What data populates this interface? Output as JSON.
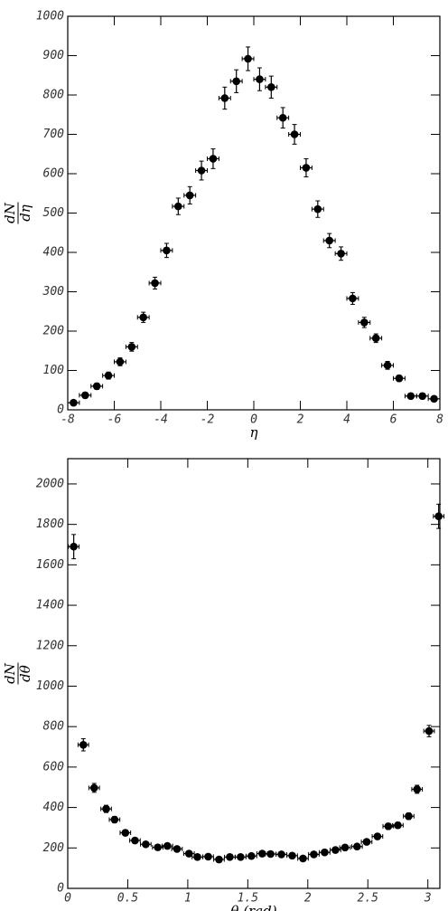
{
  "chart_data": [
    {
      "type": "scatter",
      "xlabel": "η",
      "ylabel_numerator": "dN",
      "ylabel_denominator": "dη",
      "x": [
        -7.75,
        -7.25,
        -6.75,
        -6.25,
        -5.75,
        -5.25,
        -4.75,
        -4.25,
        -3.75,
        -3.25,
        -2.75,
        -2.25,
        -1.75,
        -1.25,
        -0.75,
        -0.25,
        0.25,
        0.75,
        1.25,
        1.75,
        2.25,
        2.75,
        3.25,
        3.75,
        4.25,
        4.75,
        5.25,
        5.75,
        6.25,
        6.75,
        7.25,
        7.75
      ],
      "values": [
        18,
        37,
        60,
        87,
        122,
        160,
        235,
        322,
        405,
        517,
        545,
        608,
        638,
        792,
        835,
        892,
        840,
        820,
        742,
        700,
        615,
        510,
        430,
        397,
        283,
        222,
        182,
        113,
        80,
        35,
        35,
        28
      ],
      "errors": [
        6,
        7,
        8,
        9,
        10,
        11,
        13,
        15,
        18,
        21,
        22,
        24,
        25,
        28,
        29,
        30,
        29,
        28,
        26,
        25,
        23,
        21,
        18,
        17,
        15,
        13,
        11,
        10,
        8,
        7,
        7,
        6
      ],
      "xerr": 0.25,
      "color": "#000000",
      "xlim": [
        -8,
        8
      ],
      "xticks": [
        -8,
        -6,
        -4,
        -2,
        0,
        2,
        4,
        6,
        8
      ],
      "ylim": [
        0,
        1000
      ],
      "yticks": [
        0,
        100,
        200,
        300,
        400,
        500,
        600,
        700,
        800,
        900,
        1000
      ]
    },
    {
      "type": "scatter",
      "xlabel": "θ (rad)",
      "ylabel_numerator": "dN",
      "ylabel_denominator": "dθ",
      "x": [
        0.05,
        0.13,
        0.22,
        0.32,
        0.39,
        0.48,
        0.56,
        0.65,
        0.75,
        0.83,
        0.91,
        1.01,
        1.08,
        1.17,
        1.26,
        1.35,
        1.44,
        1.53,
        1.62,
        1.69,
        1.78,
        1.87,
        1.96,
        2.05,
        2.14,
        2.23,
        2.31,
        2.41,
        2.49,
        2.58,
        2.67,
        2.75,
        2.84,
        2.91,
        3.01,
        3.09
      ],
      "values": [
        1690,
        710,
        497,
        393,
        340,
        275,
        237,
        218,
        203,
        210,
        195,
        172,
        155,
        157,
        143,
        155,
        155,
        160,
        172,
        170,
        168,
        162,
        148,
        168,
        178,
        190,
        202,
        207,
        230,
        257,
        307,
        312,
        357,
        490,
        778,
        1840
      ],
      "errors": [
        60,
        30,
        22,
        18,
        16,
        14,
        13,
        12,
        12,
        12,
        12,
        11,
        11,
        11,
        10,
        11,
        11,
        11,
        11,
        11,
        11,
        11,
        10,
        11,
        11,
        12,
        12,
        12,
        13,
        14,
        15,
        15,
        16,
        20,
        28,
        60
      ],
      "xerr": 0.044,
      "color": "#000000",
      "xlim": [
        0,
        3.1
      ],
      "xticks": [
        0,
        0.5,
        1,
        1.5,
        2,
        2.5,
        3
      ],
      "ylim": [
        0,
        2125
      ],
      "yticks": [
        0,
        200,
        400,
        600,
        800,
        1000,
        1200,
        1400,
        1600,
        1800,
        2000
      ]
    }
  ]
}
